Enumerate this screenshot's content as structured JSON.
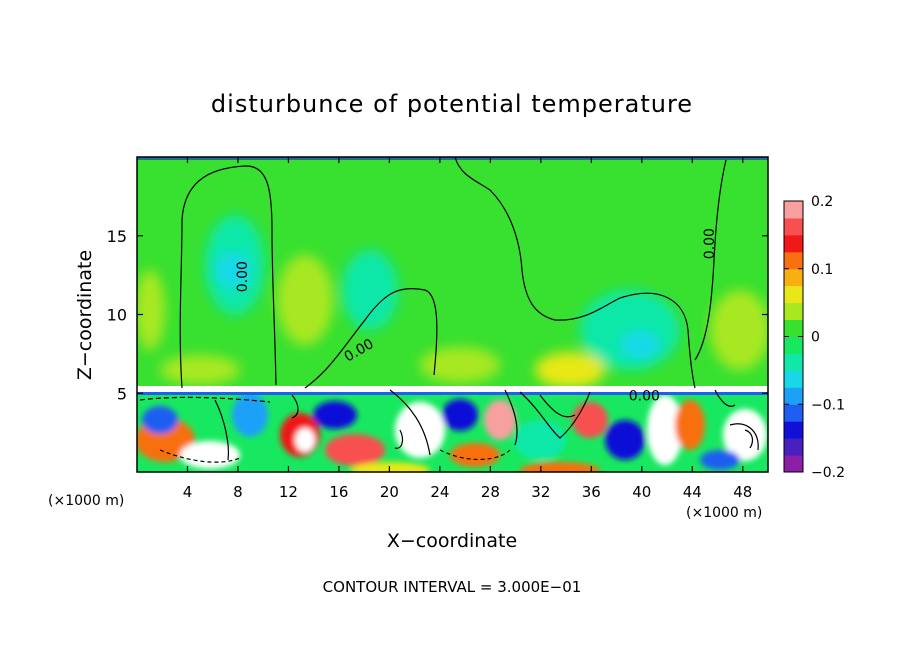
{
  "chart_data": {
    "type": "heatmap",
    "title": "disturbunce of potential temperature",
    "xlabel": "X−coordinate",
    "ylabel": "Z−coordinate",
    "x_unit_left": "(×1000 m)",
    "x_unit_right": "(×1000 m)",
    "xlim": [
      0,
      50
    ],
    "ylim": [
      0,
      20
    ],
    "x_ticks": [
      4,
      8,
      12,
      16,
      20,
      24,
      28,
      32,
      36,
      40,
      44,
      48
    ],
    "y_ticks": [
      5,
      10,
      15
    ],
    "colorbar": {
      "range": [
        -0.2,
        0.2
      ],
      "tick_labels": [
        {
          "value": 0.2,
          "label": "0.2"
        },
        {
          "value": 0.1,
          "label": "0.1"
        },
        {
          "value": 0,
          "label": "0"
        },
        {
          "value": -0.1,
          "label": "−0.1"
        },
        {
          "value": -0.2,
          "label": "−0.2"
        }
      ],
      "colors": [
        "#8b1fa8",
        "#4a1fc0",
        "#1010d8",
        "#1e5ef0",
        "#1ea0f8",
        "#18d8e8",
        "#10e8a8",
        "#18e860",
        "#38e030",
        "#a8e820",
        "#e8e818",
        "#f8b010",
        "#f87010",
        "#f01818",
        "#f85050",
        "#f8a0a0"
      ]
    },
    "contour_labels": [
      {
        "text": "0.00",
        "x": 8.4,
        "z": 12.4,
        "angle": -90
      },
      {
        "text": "0.00",
        "x": 17.6,
        "z": 7.7,
        "angle": -30
      },
      {
        "text": "0.00",
        "x": 40.2,
        "z": 4.8,
        "angle": 0
      },
      {
        "text": "0.00",
        "x": 45.4,
        "z": 14.5,
        "angle": -90
      }
    ],
    "contour_interval_text": "CONTOUR INTERVAL = 3.000E−01",
    "grid": false,
    "legend": "colorbar right"
  }
}
